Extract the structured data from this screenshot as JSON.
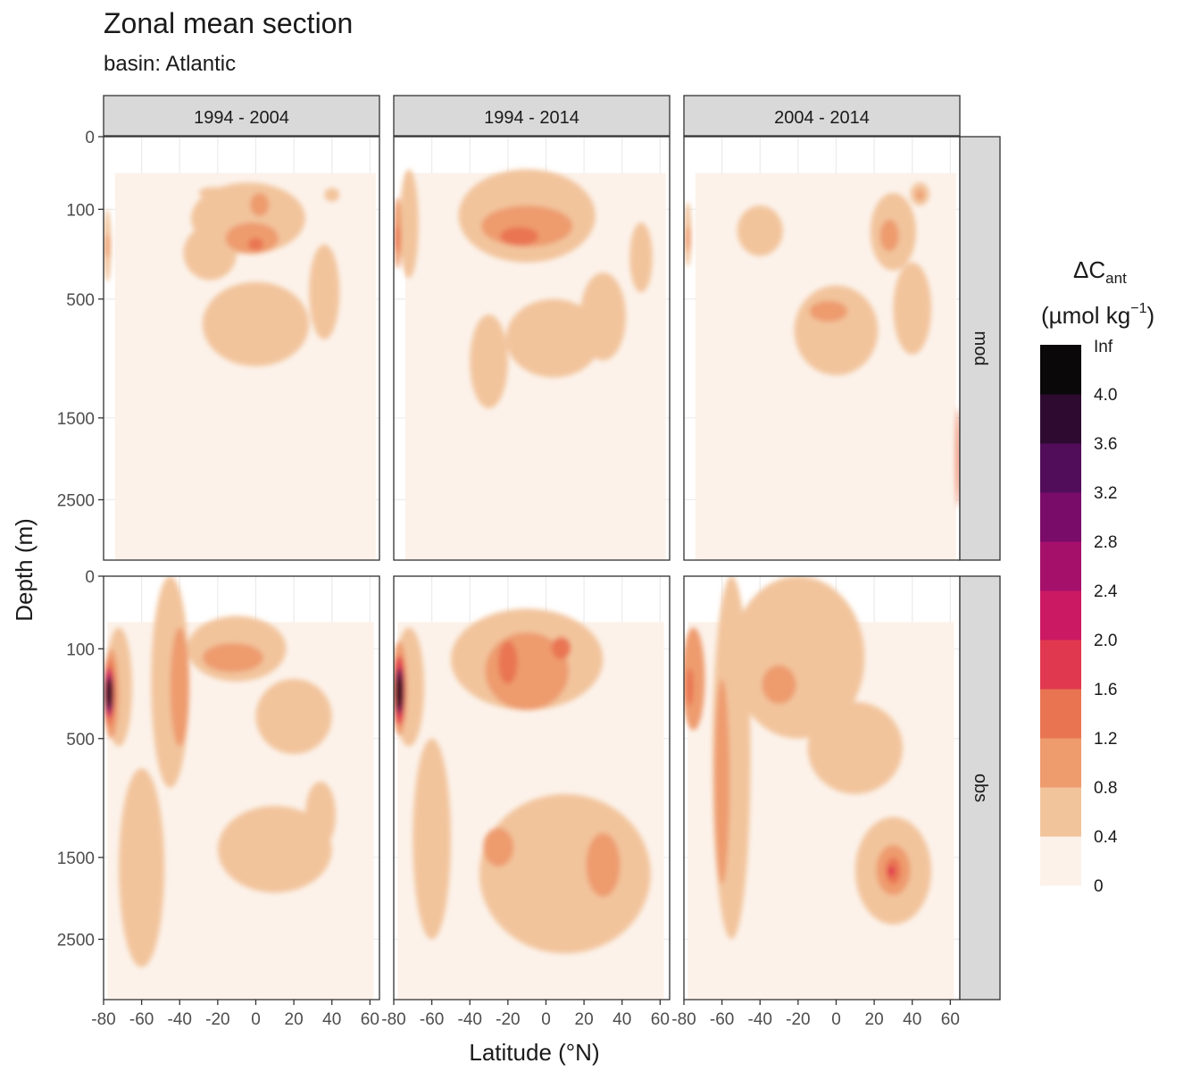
{
  "title": "Zonal mean section",
  "subtitle": "basin: Atlantic",
  "chart_data": {
    "type": "heatmap",
    "title": "Zonal mean section",
    "subtitle": "basin: Atlantic",
    "xlabel": "Latitude (°N)",
    "ylabel": "Depth (m)",
    "xlim": [
      -80,
      65
    ],
    "x_ticks": [
      "-80",
      "-60",
      "-40",
      "-20",
      "0",
      "20",
      "40",
      "60"
    ],
    "y_ticks": [
      "0",
      "100",
      "500",
      "1500",
      "2500"
    ],
    "y_scale": "sqrt-reversed",
    "facet_columns": [
      "1994 - 2004",
      "1994 - 2014",
      "2004 - 2014"
    ],
    "facet_rows": [
      "mod",
      "obs"
    ],
    "legend": {
      "title_main": "ΔC",
      "title_sub": "ant",
      "units_pre": "(µmol kg",
      "units_sup": "−1",
      "units_post": ")",
      "breaks": [
        "0",
        "0.4",
        "0.8",
        "1.2",
        "1.6",
        "2.0",
        "2.4",
        "2.8",
        "3.2",
        "3.6",
        "4.0",
        "Inf"
      ],
      "colors": [
        "#fcf2ea",
        "#f2c49c",
        "#ee9b6e",
        "#e97452",
        "#e0384f",
        "#cc1963",
        "#a5106b",
        "#7a0c69",
        "#520d5a",
        "#2e0a30",
        "#0a0808"
      ]
    },
    "panels": [
      {
        "col": 0,
        "row": 0,
        "blobs": [
          {
            "lat": -4,
            "depth": 150,
            "rlat": 30,
            "rdepth": 110,
            "level": 1
          },
          {
            "lat": 0,
            "depth": 700,
            "rlat": 28,
            "rdepth": 300,
            "level": 1
          },
          {
            "lat": -24,
            "depth": 270,
            "rlat": 14,
            "rdepth": 120,
            "level": 1
          },
          {
            "lat": 36,
            "depth": 500,
            "rlat": 8,
            "rdepth": 280,
            "level": 1
          },
          {
            "lat": 40,
            "depth": 65,
            "rlat": 4,
            "rdepth": 15,
            "level": 1
          },
          {
            "lat": -22,
            "depth": 60,
            "rlat": 8,
            "rdepth": 12,
            "level": 1
          },
          {
            "lat": -2,
            "depth": 200,
            "rlat": 14,
            "rdepth": 60,
            "level": 2
          },
          {
            "lat": 2,
            "depth": 90,
            "rlat": 5,
            "rdepth": 30,
            "level": 2
          },
          {
            "lat": 0,
            "depth": 220,
            "rlat": 4,
            "rdepth": 25,
            "level": 3
          },
          {
            "lat": -78,
            "depth": 250,
            "rlat": 2,
            "rdepth": 150,
            "level": 1
          },
          {
            "lat": -78,
            "depth": 230,
            "rlat": 1.2,
            "rdepth": 50,
            "level": 2
          }
        ]
      },
      {
        "col": 1,
        "row": 0,
        "blobs": [
          {
            "lat": -10,
            "depth": 160,
            "rlat": 36,
            "rdepth": 140,
            "level": 1
          },
          {
            "lat": 4,
            "depth": 800,
            "rlat": 25,
            "rdepth": 300,
            "level": 1
          },
          {
            "lat": -30,
            "depth": 1000,
            "rlat": 10,
            "rdepth": 400,
            "level": 1
          },
          {
            "lat": 30,
            "depth": 650,
            "rlat": 12,
            "rdepth": 300,
            "level": 1
          },
          {
            "lat": 50,
            "depth": 300,
            "rlat": 6,
            "rdepth": 160,
            "level": 1
          },
          {
            "lat": -72,
            "depth": 200,
            "rlat": 5,
            "rdepth": 180,
            "level": 1
          },
          {
            "lat": -10,
            "depth": 160,
            "rlat": 24,
            "rdepth": 70,
            "level": 2
          },
          {
            "lat": -14,
            "depth": 190,
            "rlat": 10,
            "rdepth": 35,
            "level": 3
          },
          {
            "lat": -78,
            "depth": 200,
            "rlat": 2,
            "rdepth": 130,
            "level": 2
          },
          {
            "lat": -78,
            "depth": 200,
            "rlat": 1.2,
            "rdepth": 50,
            "level": 3
          }
        ]
      },
      {
        "col": 2,
        "row": 0,
        "blobs": [
          {
            "lat": 0,
            "depth": 750,
            "rlat": 22,
            "rdepth": 330,
            "level": 1
          },
          {
            "lat": 30,
            "depth": 200,
            "rlat": 12,
            "rdepth": 140,
            "level": 1
          },
          {
            "lat": 40,
            "depth": 600,
            "rlat": 10,
            "rdepth": 300,
            "level": 1
          },
          {
            "lat": -40,
            "depth": 180,
            "rlat": 12,
            "rdepth": 90,
            "level": 1
          },
          {
            "lat": 44,
            "depth": 65,
            "rlat": 5,
            "rdepth": 25,
            "level": 1
          },
          {
            "lat": -4,
            "depth": 580,
            "rlat": 10,
            "rdepth": 70,
            "level": 2
          },
          {
            "lat": 28,
            "depth": 190,
            "rlat": 5,
            "rdepth": 60,
            "level": 2
          },
          {
            "lat": 44,
            "depth": 65,
            "rlat": 2,
            "rdepth": 12,
            "level": 2
          },
          {
            "lat": -78,
            "depth": 200,
            "rlat": 2,
            "rdepth": 120,
            "level": 1
          },
          {
            "lat": -78,
            "depth": 200,
            "rlat": 1.2,
            "rdepth": 50,
            "level": 2
          },
          {
            "lat": 64,
            "depth": 2000,
            "rlat": 1,
            "rdepth": 600,
            "level": 3
          }
        ]
      },
      {
        "col": 0,
        "row": 1,
        "blobs": [
          {
            "lat": -10,
            "depth": 120,
            "rlat": 26,
            "rdepth": 90,
            "level": 1
          },
          {
            "lat": -45,
            "depth": 350,
            "rlat": 10,
            "rdepth": 500,
            "level": 1
          },
          {
            "lat": -60,
            "depth": 1800,
            "rlat": 12,
            "rdepth": 1100,
            "level": 1
          },
          {
            "lat": 10,
            "depth": 1450,
            "rlat": 30,
            "rdepth": 450,
            "level": 1
          },
          {
            "lat": 34,
            "depth": 1100,
            "rlat": 8,
            "rdepth": 300,
            "level": 1
          },
          {
            "lat": 20,
            "depth": 400,
            "rlat": 20,
            "rdepth": 200,
            "level": 1
          },
          {
            "lat": -72,
            "depth": 300,
            "rlat": 7,
            "rdepth": 250,
            "level": 1
          },
          {
            "lat": -12,
            "depth": 130,
            "rlat": 16,
            "rdepth": 45,
            "level": 2
          },
          {
            "lat": -40,
            "depth": 300,
            "rlat": 5,
            "rdepth": 250,
            "level": 2
          },
          {
            "lat": -76,
            "depth": 300,
            "rlat": 4,
            "rdepth": 200,
            "level": 2
          },
          {
            "lat": -77,
            "depth": 280,
            "rlat": 3,
            "rdepth": 150,
            "level": 3
          },
          {
            "lat": -77,
            "depth": 270,
            "rlat": 2.5,
            "rdepth": 110,
            "level": 5
          },
          {
            "lat": -77,
            "depth": 270,
            "rlat": 2,
            "rdepth": 80,
            "level": 8
          },
          {
            "lat": -77,
            "depth": 260,
            "rlat": 1.6,
            "rdepth": 60,
            "level": 10
          }
        ]
      },
      {
        "col": 1,
        "row": 1,
        "blobs": [
          {
            "lat": -10,
            "depth": 180,
            "rlat": 40,
            "rdepth": 160,
            "level": 1
          },
          {
            "lat": -10,
            "depth": 200,
            "rlat": 22,
            "rdepth": 140,
            "level": 2
          },
          {
            "lat": -20,
            "depth": 150,
            "rlat": 5,
            "rdepth": 70,
            "level": 3
          },
          {
            "lat": 8,
            "depth": 100,
            "rlat": 5,
            "rdepth": 30,
            "level": 3
          },
          {
            "lat": -25,
            "depth": 1400,
            "rlat": 8,
            "rdepth": 200,
            "level": 2
          },
          {
            "lat": 30,
            "depth": 1600,
            "rlat": 9,
            "rdepth": 350,
            "level": 2
          },
          {
            "lat": 10,
            "depth": 1800,
            "rlat": 45,
            "rdepth": 900,
            "level": 1
          },
          {
            "lat": -60,
            "depth": 1500,
            "rlat": 10,
            "rdepth": 1000,
            "level": 1
          },
          {
            "lat": -72,
            "depth": 300,
            "rlat": 8,
            "rdepth": 250,
            "level": 1
          },
          {
            "lat": -77,
            "depth": 280,
            "rlat": 4,
            "rdepth": 200,
            "level": 2
          },
          {
            "lat": -77,
            "depth": 270,
            "rlat": 3,
            "rdepth": 150,
            "level": 4
          },
          {
            "lat": -77,
            "depth": 260,
            "rlat": 2.2,
            "rdepth": 100,
            "level": 8
          },
          {
            "lat": -77,
            "depth": 260,
            "rlat": 1.7,
            "rdepth": 70,
            "level": 10
          }
        ]
      },
      {
        "col": 2,
        "row": 1,
        "blobs": [
          {
            "lat": -20,
            "depth": 250,
            "rlat": 35,
            "rdepth": 250,
            "level": 1
          },
          {
            "lat": -55,
            "depth": 1200,
            "rlat": 10,
            "rdepth": 1300,
            "level": 1
          },
          {
            "lat": 30,
            "depth": 1700,
            "rlat": 20,
            "rdepth": 600,
            "level": 1
          },
          {
            "lat": 10,
            "depth": 600,
            "rlat": 25,
            "rdepth": 300,
            "level": 1
          },
          {
            "lat": -30,
            "depth": 230,
            "rlat": 9,
            "rdepth": 80,
            "level": 2
          },
          {
            "lat": -60,
            "depth": 1000,
            "rlat": 4,
            "rdepth": 800,
            "level": 2
          },
          {
            "lat": 30,
            "depth": 1650,
            "rlat": 9,
            "rdepth": 280,
            "level": 2
          },
          {
            "lat": 30,
            "depth": 1650,
            "rlat": 4,
            "rdepth": 150,
            "level": 3
          },
          {
            "lat": 29,
            "depth": 1650,
            "rlat": 1.8,
            "rdepth": 60,
            "level": 4
          },
          {
            "lat": -75,
            "depth": 250,
            "rlat": 6,
            "rdepth": 200,
            "level": 2
          },
          {
            "lat": -77,
            "depth": 240,
            "rlat": 2,
            "rdepth": 80,
            "level": 3
          }
        ]
      }
    ]
  }
}
